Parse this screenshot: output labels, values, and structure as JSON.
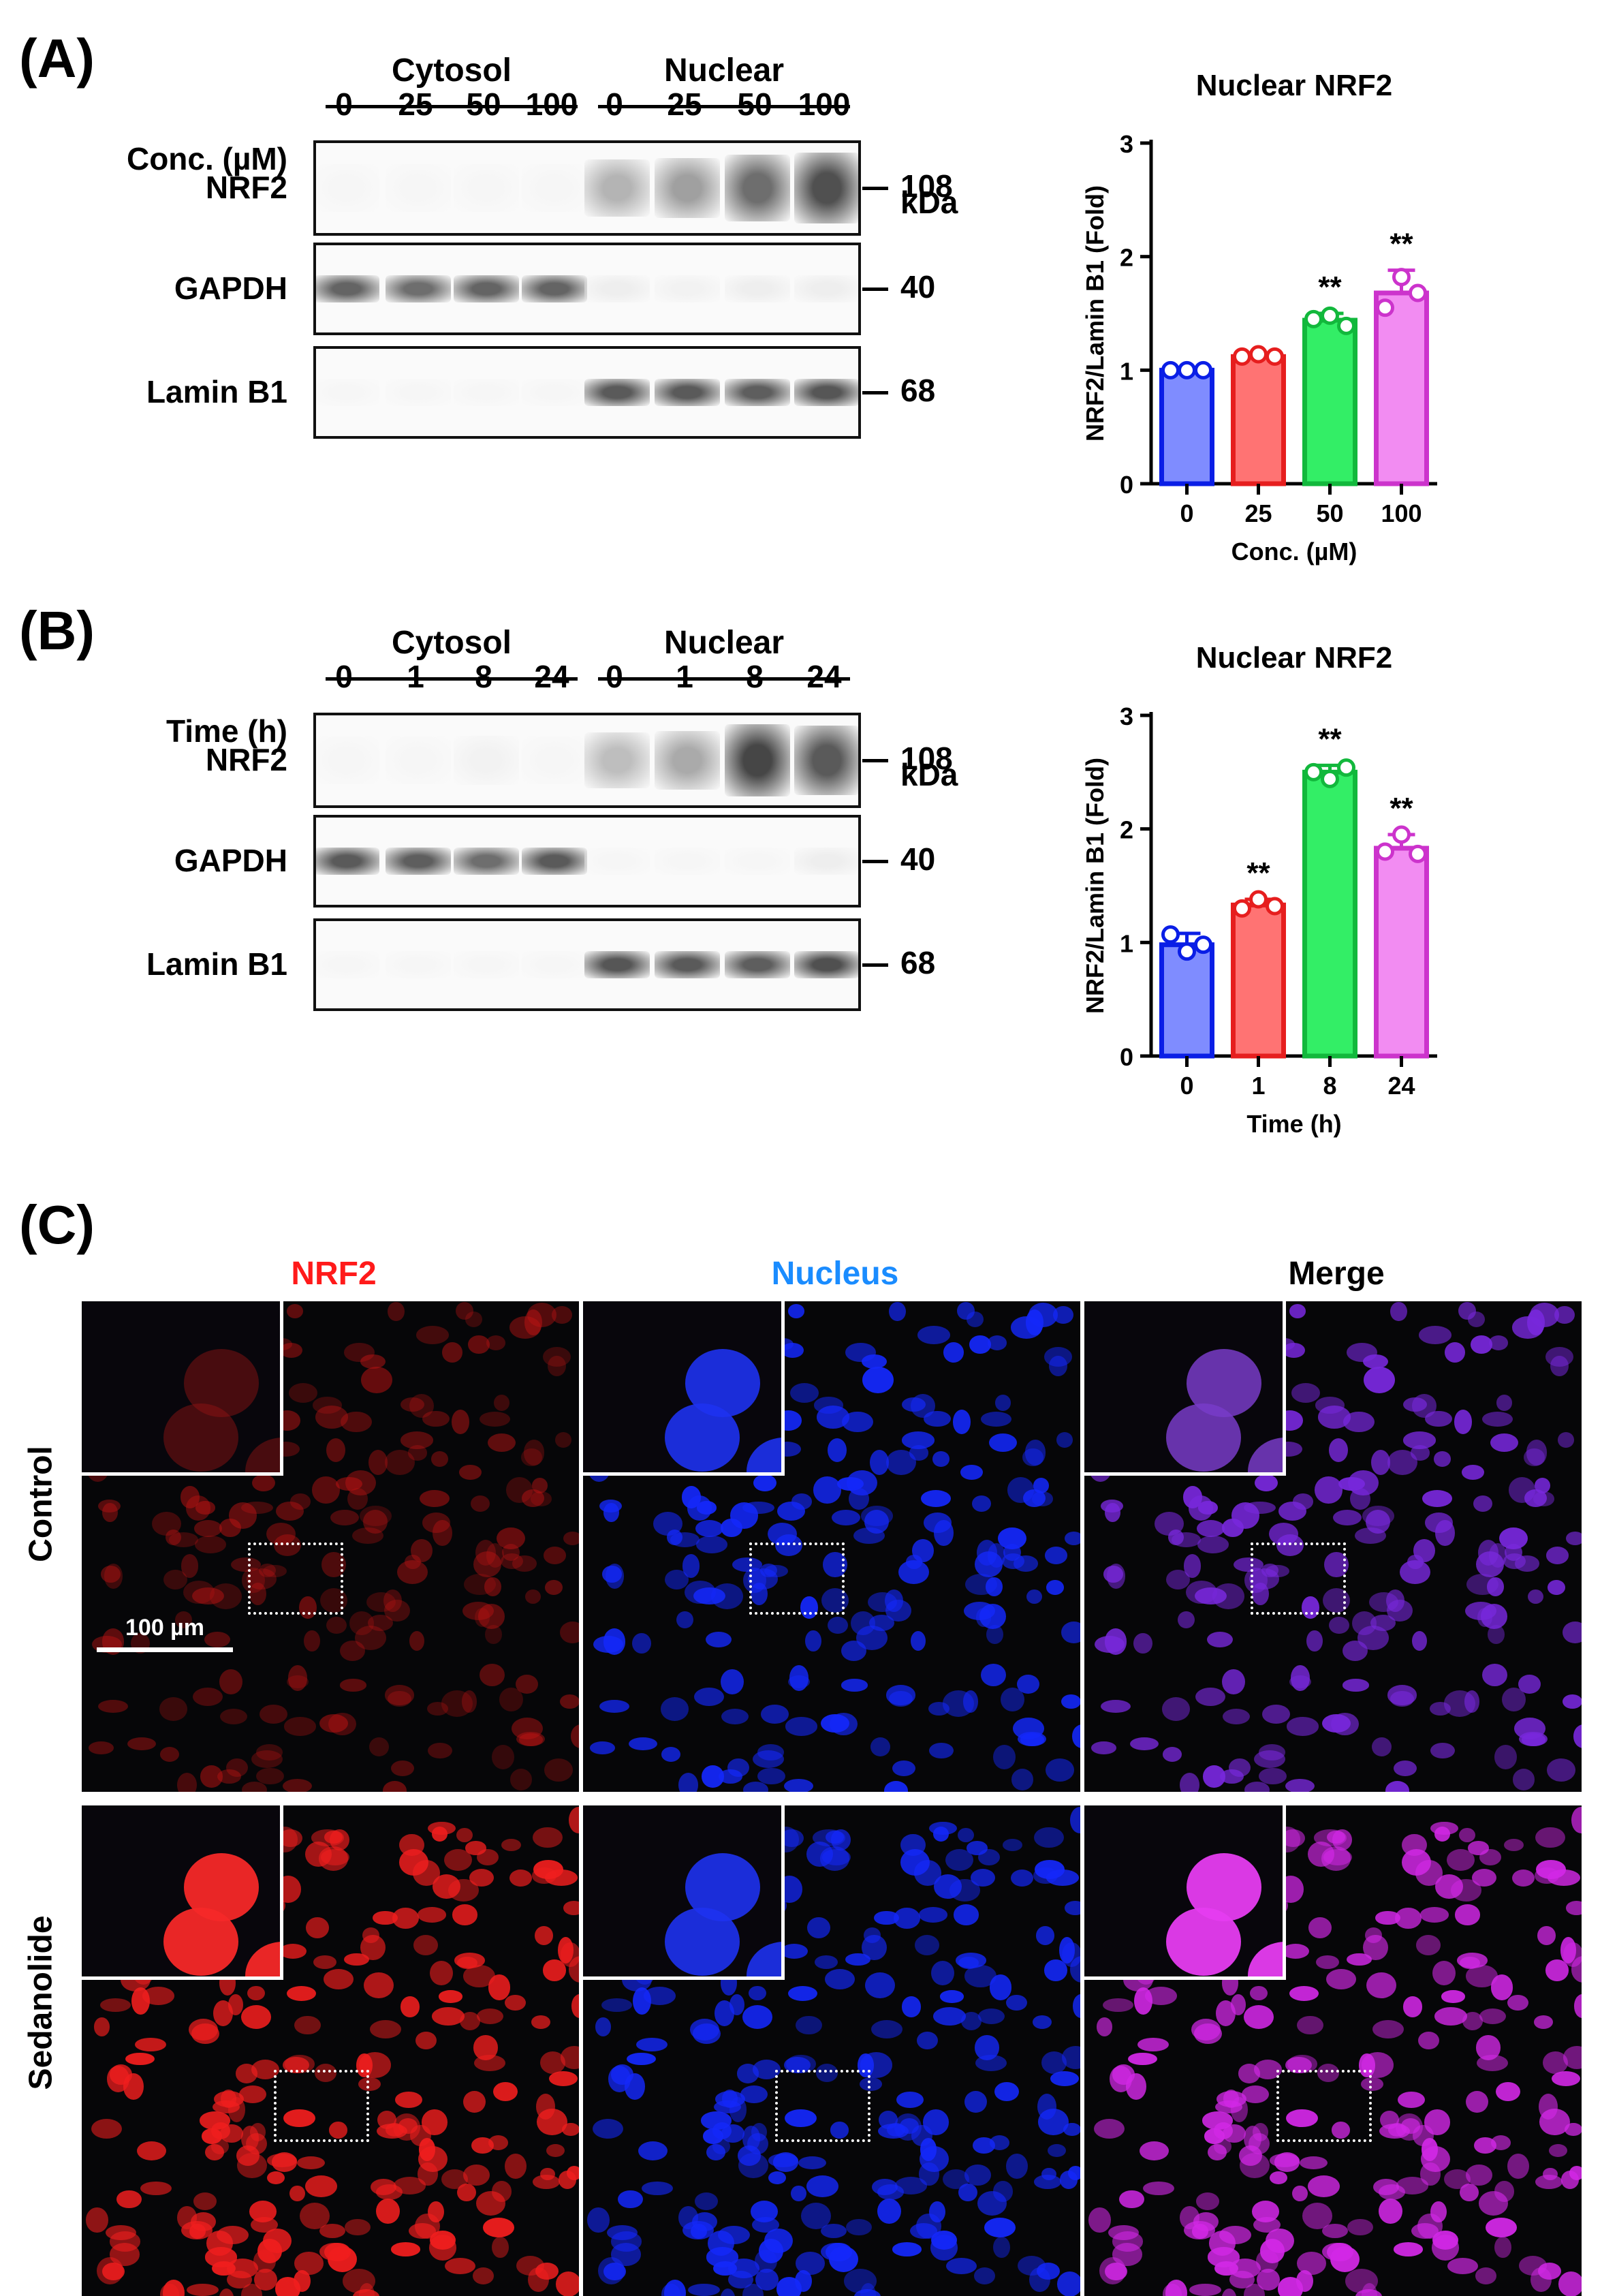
{
  "panelA": {
    "label": "(A)",
    "group_cytosol": "Cytosol",
    "group_nuclear": "Nuclear",
    "lane_header": "Conc. (µM)",
    "lanes": [
      "0",
      "25",
      "50",
      "100",
      "0",
      "25",
      "50",
      "100"
    ],
    "kda_label": "kDa",
    "rows": [
      {
        "name": "NRF2",
        "kda": "108",
        "cyto": [
          0.02,
          0.02,
          0.02,
          0.02
        ],
        "nuc": [
          0.35,
          0.45,
          0.7,
          0.85
        ]
      },
      {
        "name": "GAPDH",
        "kda": "40",
        "cyto": [
          0.75,
          0.7,
          0.75,
          0.75
        ],
        "nuc": [
          0.06,
          0.04,
          0.06,
          0.06
        ]
      },
      {
        "name": "Lamin B1",
        "kda": "68",
        "cyto": [
          0.02,
          0.02,
          0.02,
          0.02
        ],
        "nuc": [
          0.8,
          0.8,
          0.78,
          0.82
        ]
      }
    ]
  },
  "panelB": {
    "label": "(B)",
    "group_cytosol": "Cytosol",
    "group_nuclear": "Nuclear",
    "lane_header": "Time (h)",
    "lanes": [
      "0",
      "1",
      "8",
      "24",
      "0",
      "1",
      "8",
      "24"
    ],
    "kda_label": "kDa",
    "rows": [
      {
        "name": "NRF2",
        "kda": "108",
        "cyto": [
          0.02,
          0.02,
          0.04,
          0.02
        ],
        "nuc": [
          0.3,
          0.4,
          0.9,
          0.8
        ]
      },
      {
        "name": "GAPDH",
        "kda": "40",
        "cyto": [
          0.8,
          0.78,
          0.7,
          0.8
        ],
        "nuc": [
          0.02,
          0.02,
          0.02,
          0.06
        ]
      },
      {
        "name": "Lamin B1",
        "kda": "68",
        "cyto": [
          0.02,
          0.02,
          0.02,
          0.02
        ],
        "nuc": [
          0.82,
          0.8,
          0.78,
          0.85
        ]
      }
    ]
  },
  "panelC": {
    "label": "(C)",
    "columns": [
      "NRF2",
      "Nucleus",
      "Merge"
    ],
    "column_colors": [
      "#ff1a1a",
      "#1a8cff",
      "#000000"
    ],
    "rows": [
      "Control",
      "Sedanolide"
    ],
    "scale_bar": "100 µm"
  },
  "chart_data": [
    {
      "type": "bar",
      "title": "Nuclear NRF2",
      "xlabel": "Conc. (µM)",
      "ylabel": "NRF2/Lamin B1 (Fold)",
      "categories": [
        "0",
        "25",
        "50",
        "100"
      ],
      "values": [
        1.0,
        1.12,
        1.44,
        1.68
      ],
      "errors": [
        0.02,
        0.03,
        0.06,
        0.2
      ],
      "points": [
        [
          1.0,
          1.0,
          1.0
        ],
        [
          1.12,
          1.14,
          1.12
        ],
        [
          1.45,
          1.48,
          1.39
        ],
        [
          1.55,
          1.82,
          1.68
        ]
      ],
      "significance": [
        "",
        "",
        "**",
        "**"
      ],
      "ylim": [
        0,
        3
      ],
      "yticks": [
        "0",
        "1",
        "2",
        "3"
      ],
      "colors": [
        "#7f8cff",
        "#ff7373",
        "#33ee66",
        "#f28cf2"
      ],
      "edge_colors": [
        "#0a1ee6",
        "#e61e1e",
        "#12b83c",
        "#cc33cc"
      ]
    },
    {
      "type": "bar",
      "title": "Nuclear NRF2",
      "xlabel": "Time (h)",
      "ylabel": "NRF2/Lamin B1 (Fold)",
      "categories": [
        "0",
        "1",
        "8",
        "24"
      ],
      "values": [
        0.98,
        1.33,
        2.5,
        1.83
      ],
      "errors": [
        0.1,
        0.05,
        0.06,
        0.12
      ],
      "points": [
        [
          1.07,
          0.92,
          0.98
        ],
        [
          1.3,
          1.38,
          1.32
        ],
        [
          2.5,
          2.44,
          2.54
        ],
        [
          1.8,
          1.95,
          1.78
        ]
      ],
      "significance": [
        "",
        "**",
        "**",
        "**"
      ],
      "ylim": [
        0,
        3
      ],
      "yticks": [
        "0",
        "1",
        "2",
        "3"
      ],
      "colors": [
        "#7f8cff",
        "#ff7373",
        "#33ee66",
        "#f28cf2"
      ],
      "edge_colors": [
        "#0a1ee6",
        "#e61e1e",
        "#12b83c",
        "#cc33cc"
      ]
    }
  ]
}
